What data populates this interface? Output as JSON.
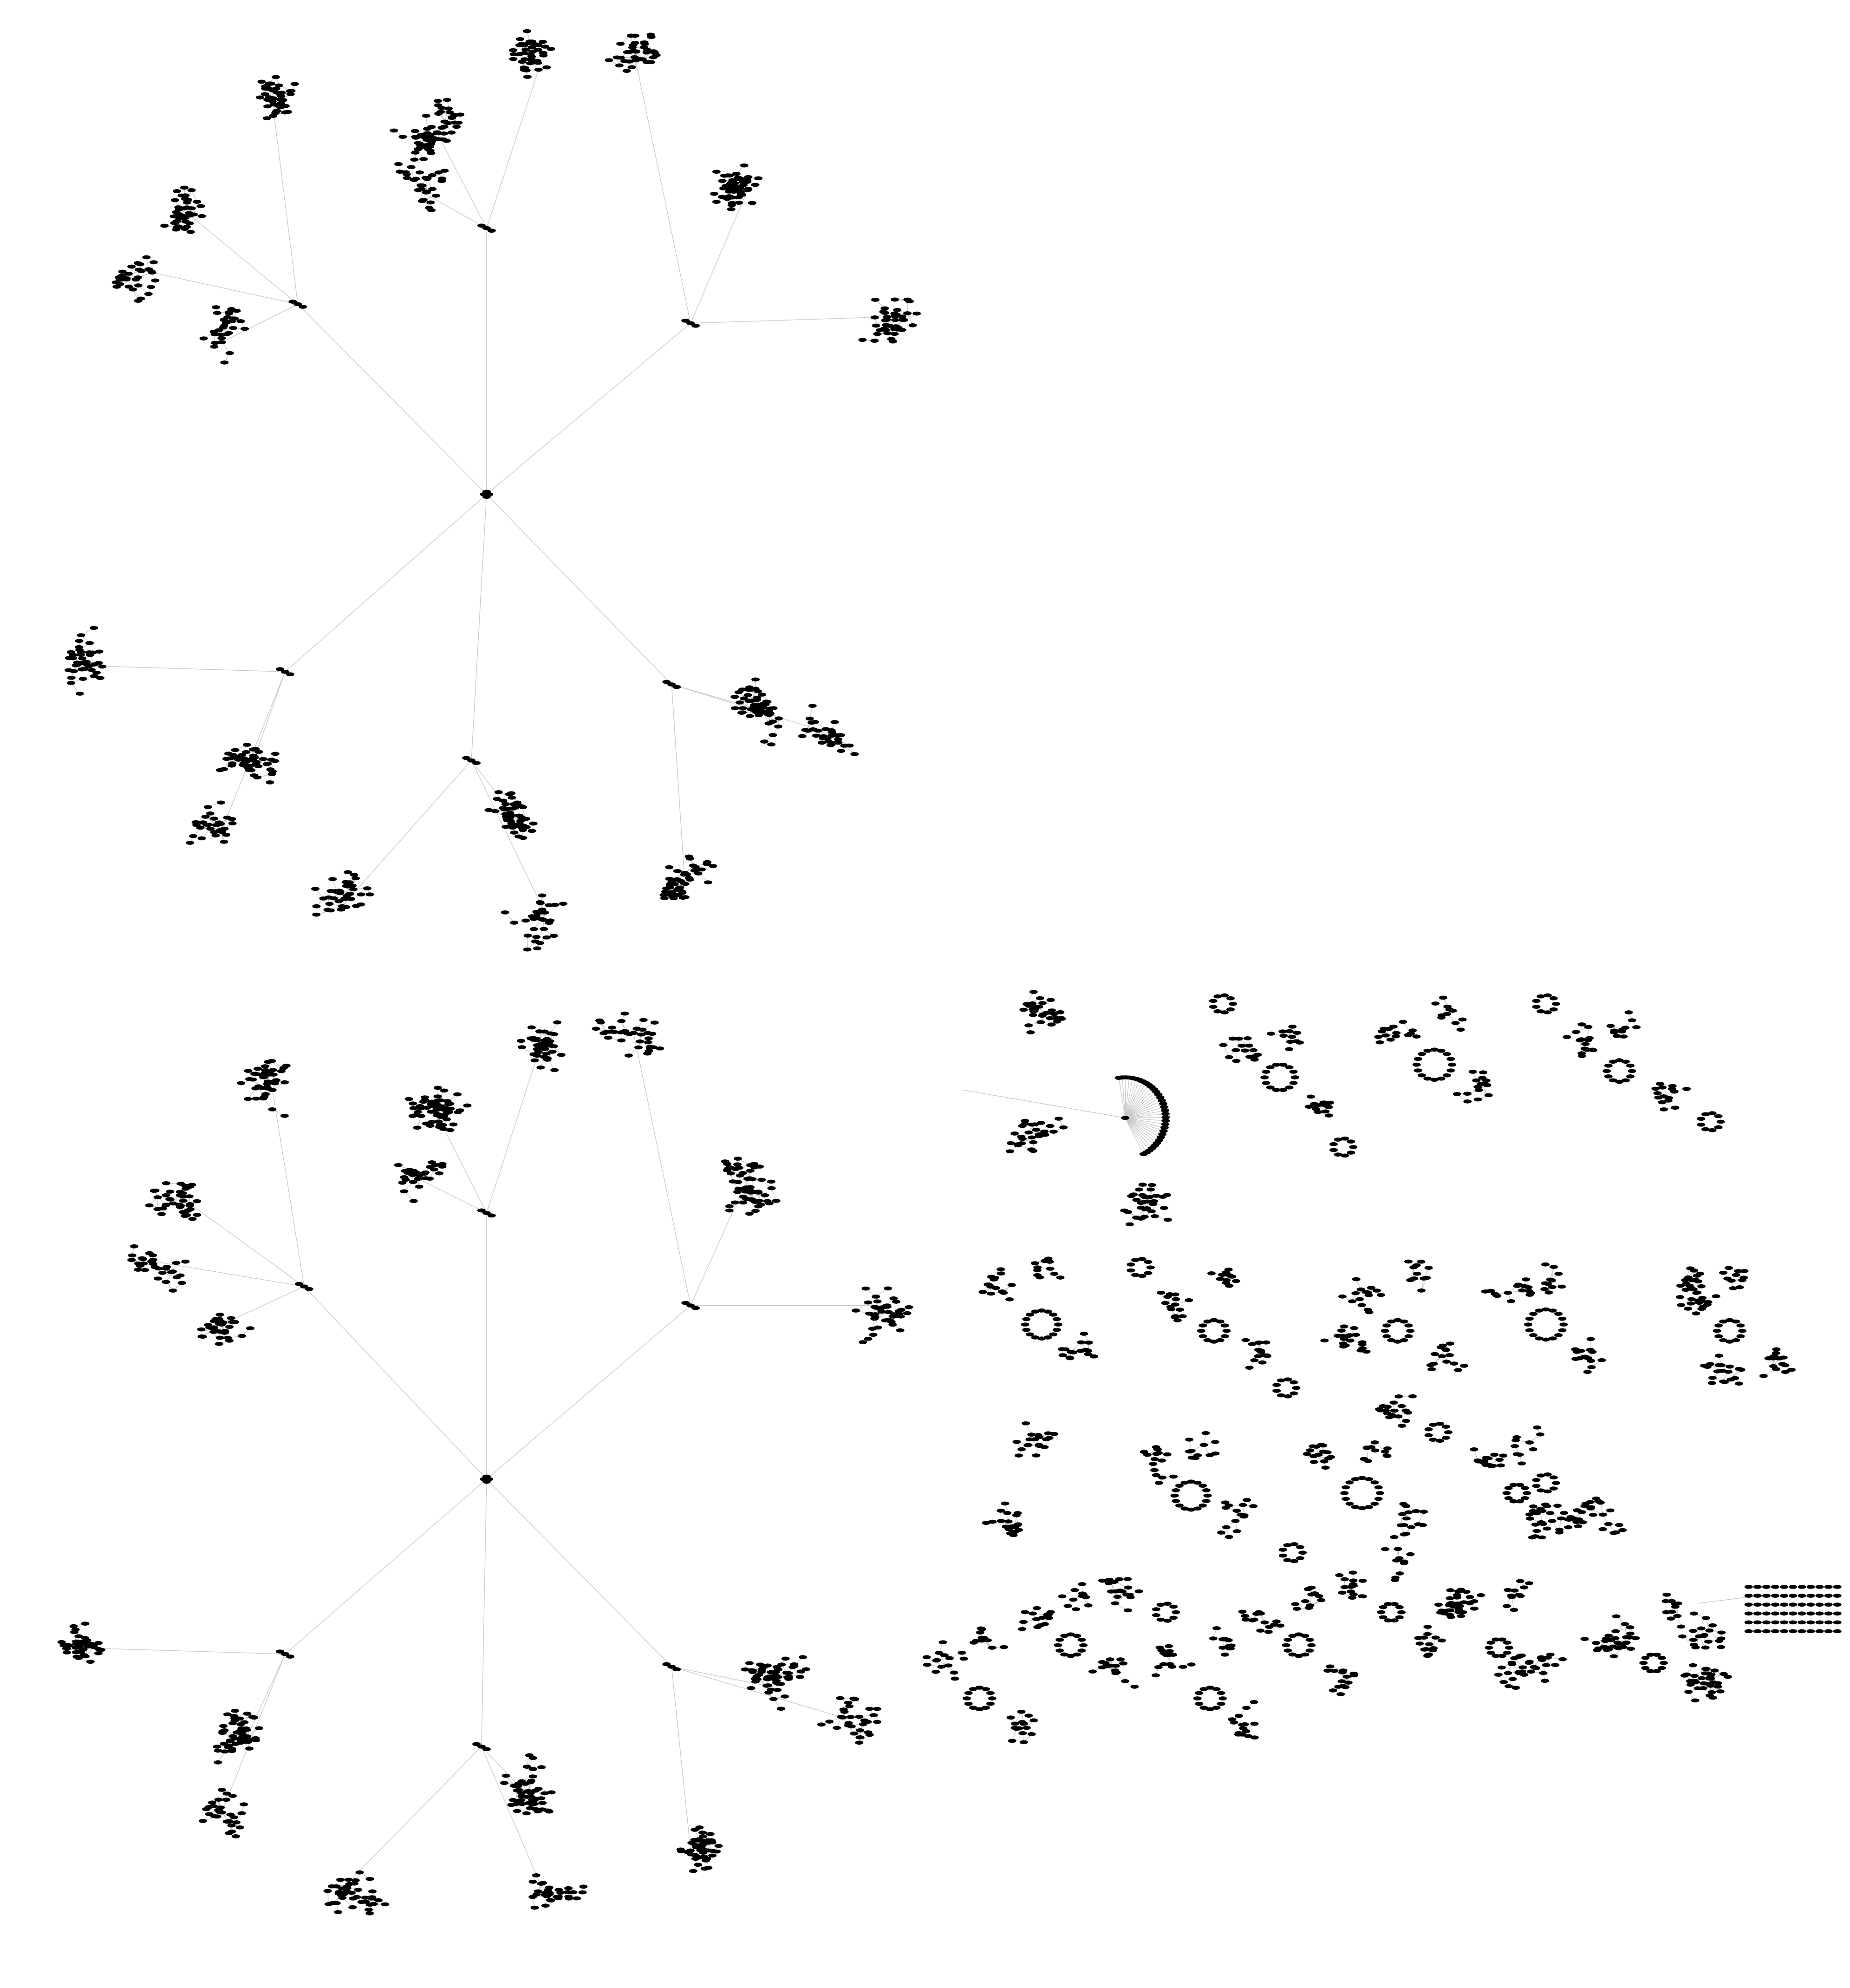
{
  "diagram": {
    "kind": "network-graph",
    "labels_visible": false,
    "colors": {
      "background": "#ffffff",
      "edge": "#c9c9c9",
      "node": "#000000"
    },
    "node_shape": "filled-ellipse",
    "notes_visible_text": []
  }
}
